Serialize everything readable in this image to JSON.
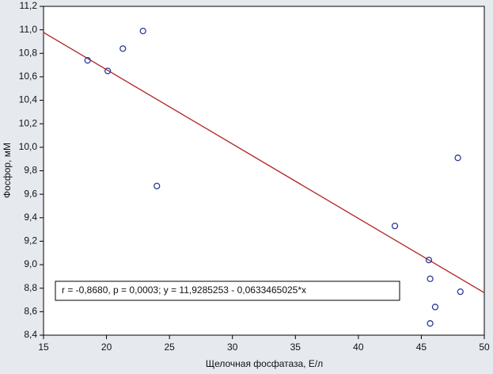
{
  "chart_data": {
    "type": "scatter",
    "x_label": "Щелочная фосфатаза, Е/л",
    "y_label": "Фосфор, мМ",
    "annotation": "r = -0,8680, p = 0,0003;  y = 11,9285253 - 0,0633465025*x",
    "series": [
      {
        "color": "#2a3a9a",
        "x": [
          18.5,
          20.1,
          21.3,
          22.9,
          24.0,
          42.9,
          45.6,
          45.7,
          47.9,
          48.1,
          46.1,
          45.7
        ],
        "values": [
          10.74,
          10.65,
          10.84,
          10.99,
          9.67,
          9.33,
          9.04,
          8.88,
          9.91,
          8.77,
          8.64,
          8.5
        ]
      }
    ],
    "fit_line": {
      "color": "#b22222",
      "x": [
        15,
        50
      ],
      "values": [
        10.978,
        8.761
      ]
    },
    "xlim": [
      15,
      50
    ],
    "xticks": [
      15,
      20,
      25,
      30,
      35,
      40,
      45,
      50
    ],
    "ylim": [
      8.4,
      11.2
    ],
    "yticks": [
      {
        "value": 8.4,
        "label": "8,4"
      },
      {
        "value": 8.6,
        "label": "8,6"
      },
      {
        "value": 8.8,
        "label": "8,8"
      },
      {
        "value": 9.0,
        "label": "9,0"
      },
      {
        "value": 9.2,
        "label": "9,2"
      },
      {
        "value": 9.4,
        "label": "9,4"
      },
      {
        "value": 9.6,
        "label": "9,6"
      },
      {
        "value": 9.8,
        "label": "9,8"
      },
      {
        "value": 10.0,
        "label": "10,0"
      },
      {
        "value": 10.2,
        "label": "10,2"
      },
      {
        "value": 10.4,
        "label": "10,4"
      },
      {
        "value": 10.6,
        "label": "10,6"
      },
      {
        "value": 10.8,
        "label": "10,8"
      },
      {
        "value": 11.0,
        "label": "11,0"
      },
      {
        "value": 11.2,
        "label": "11,2"
      }
    ]
  }
}
